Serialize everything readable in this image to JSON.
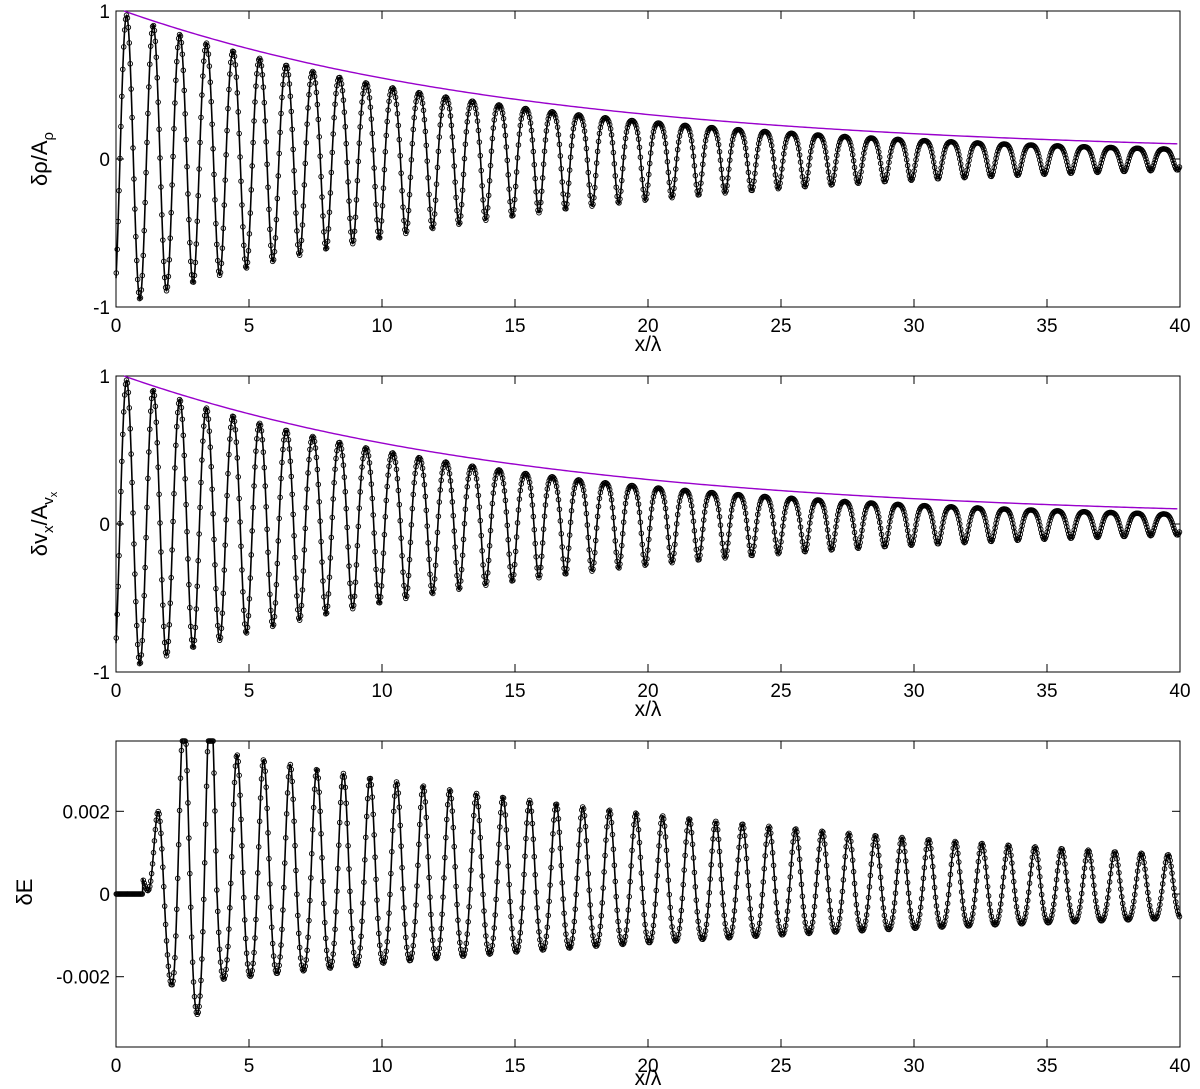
{
  "colors": {
    "data": "#000000",
    "envelope": "#9900cc"
  },
  "panels": [
    {
      "ylabel": {
        "base": "δρ/A",
        "sub": "ρ",
        "subsub": ""
      },
      "xlabel": "x/λ"
    },
    {
      "ylabel": {
        "base": "δv",
        "sub": "x",
        "mid": "/A",
        "sub2": "v",
        "subsub": "x"
      },
      "xlabel": "x/λ"
    },
    {
      "ylabel": {
        "base": "δE",
        "sub": "",
        "subsub": ""
      },
      "xlabel": "x/λ"
    }
  ],
  "chart_data": [
    {
      "type": "line",
      "xlabel": "x/λ",
      "ylabel": "δρ/Aρ",
      "xlim": [
        0,
        40
      ],
      "ylim": [
        -1,
        1
      ],
      "xticks": [
        0,
        5,
        10,
        15,
        20,
        25,
        30,
        35,
        40
      ],
      "xtick_labels": [
        "0",
        "5",
        "10",
        "15",
        "20",
        "25",
        "30",
        "35",
        "40"
      ],
      "yticks": [
        -1,
        0,
        1
      ],
      "ytick_labels": [
        "-1",
        "0",
        "1"
      ],
      "grid": false,
      "legend": "none",
      "series": [
        {
          "kind": "oscillation-markers",
          "description_model": "y = exp(-x/15) * cos(2*pi*(x - 0.4)/1.02) approx",
          "peaks": [
            {
              "x": 0.4,
              "y": 1.0
            },
            {
              "x": 1.4,
              "y": 0.92
            },
            {
              "x": 2.4,
              "y": 0.93
            },
            {
              "x": 3.4,
              "y": 0.84
            },
            {
              "x": 5.4,
              "y": 0.72
            },
            {
              "x": 10.4,
              "y": 0.52
            },
            {
              "x": 15.4,
              "y": 0.37
            },
            {
              "x": 20.4,
              "y": 0.27
            },
            {
              "x": 25.4,
              "y": 0.19
            },
            {
              "x": 30.4,
              "y": 0.14
            },
            {
              "x": 35.4,
              "y": 0.1
            },
            {
              "x": 39.5,
              "y": 0.08
            }
          ],
          "troughs": [
            {
              "x": 0.9,
              "y": -1.0
            },
            {
              "x": 1.9,
              "y": -0.98
            },
            {
              "x": 4.9,
              "y": -0.75
            },
            {
              "x": 9.9,
              "y": -0.62
            },
            {
              "x": 14.9,
              "y": -0.38
            },
            {
              "x": 19.9,
              "y": -0.22
            },
            {
              "x": 24.9,
              "y": -0.15
            },
            {
              "x": 29.9,
              "y": -0.12
            },
            {
              "x": 34.9,
              "y": -0.08
            },
            {
              "x": 39.9,
              "y": -0.05
            }
          ]
        },
        {
          "kind": "envelope",
          "x": [
            0.3,
            5,
            10,
            15,
            20,
            25,
            30,
            35,
            40
          ],
          "y": [
            1.0,
            0.76,
            0.55,
            0.38,
            0.28,
            0.2,
            0.14,
            0.1,
            0.07
          ]
        }
      ],
      "model": {
        "k": 1.0,
        "phase_x": 0.4,
        "decay_len": 15,
        "envelope_decay_len": 15,
        "asym": 0.35,
        "x_start": 0.0
      }
    },
    {
      "type": "line",
      "xlabel": "x/λ",
      "ylabel": "δv_x/A_v_x",
      "xlim": [
        0,
        40
      ],
      "ylim": [
        -1,
        1
      ],
      "xticks": [
        0,
        5,
        10,
        15,
        20,
        25,
        30,
        35,
        40
      ],
      "xtick_labels": [
        "0",
        "5",
        "10",
        "15",
        "20",
        "25",
        "30",
        "35",
        "40"
      ],
      "yticks": [
        -1,
        0,
        1
      ],
      "ytick_labels": [
        "-1",
        "0",
        "1"
      ],
      "grid": false,
      "legend": "none",
      "series": [
        {
          "kind": "oscillation-markers",
          "peaks": [
            {
              "x": 0.4,
              "y": 1.0
            },
            {
              "x": 1.4,
              "y": 0.84
            },
            {
              "x": 2.4,
              "y": 0.98
            },
            {
              "x": 3.4,
              "y": 0.87
            },
            {
              "x": 5.4,
              "y": 0.72
            },
            {
              "x": 10.4,
              "y": 0.52
            },
            {
              "x": 15.4,
              "y": 0.37
            },
            {
              "x": 20.4,
              "y": 0.27
            },
            {
              "x": 25.4,
              "y": 0.19
            },
            {
              "x": 30.4,
              "y": 0.14
            },
            {
              "x": 35.4,
              "y": 0.1
            },
            {
              "x": 39.5,
              "y": 0.08
            }
          ],
          "troughs": [
            {
              "x": 0.9,
              "y": -1.0
            },
            {
              "x": 1.9,
              "y": -1.0
            },
            {
              "x": 4.9,
              "y": -0.78
            },
            {
              "x": 9.9,
              "y": -0.62
            },
            {
              "x": 14.9,
              "y": -0.38
            },
            {
              "x": 19.9,
              "y": -0.22
            },
            {
              "x": 24.9,
              "y": -0.15
            },
            {
              "x": 29.9,
              "y": -0.12
            },
            {
              "x": 34.9,
              "y": -0.08
            },
            {
              "x": 39.9,
              "y": -0.05
            }
          ]
        },
        {
          "kind": "envelope",
          "x": [
            0.3,
            5,
            10,
            15,
            20,
            25,
            30,
            35,
            40
          ],
          "y": [
            1.0,
            0.76,
            0.55,
            0.38,
            0.28,
            0.2,
            0.14,
            0.1,
            0.07
          ]
        }
      ],
      "model": {
        "k": 1.0,
        "phase_x": 0.4,
        "decay_len": 15,
        "envelope_decay_len": 15,
        "asym": 0.35,
        "x_start": 0.0
      }
    },
    {
      "type": "line",
      "xlabel": "x/λ",
      "ylabel": "δE",
      "xlim": [
        0,
        40
      ],
      "ylim": [
        -0.0037,
        0.0037
      ],
      "xticks": [
        0,
        5,
        10,
        15,
        20,
        25,
        30,
        35,
        40
      ],
      "xtick_labels": [
        "0",
        "5",
        "10",
        "15",
        "20",
        "25",
        "30",
        "35",
        "40"
      ],
      "yticks": [
        -0.002,
        0,
        0.002
      ],
      "ytick_labels": [
        "-0.002",
        "0",
        "0.002"
      ],
      "grid": false,
      "legend": "none",
      "series": [
        {
          "kind": "oscillation-markers",
          "flat_until": 1.0,
          "peaks": [
            {
              "x": 1.55,
              "y": 0.0028
            },
            {
              "x": 2.55,
              "y": 0.0034
            },
            {
              "x": 3.55,
              "y": 0.0035
            },
            {
              "x": 4.55,
              "y": 0.0025
            },
            {
              "x": 5.55,
              "y": 0.0021
            },
            {
              "x": 10.55,
              "y": 0.002
            },
            {
              "x": 15.55,
              "y": 0.0015
            },
            {
              "x": 20.55,
              "y": 0.0009
            },
            {
              "x": 25.55,
              "y": 0.0006
            },
            {
              "x": 30.55,
              "y": 0.0004
            },
            {
              "x": 35.55,
              "y": 0.0002
            },
            {
              "x": 39.5,
              "y": 0.0003
            }
          ],
          "troughs": [
            {
              "x": 1.05,
              "y": -0.0018
            },
            {
              "x": 2.05,
              "y": -0.0021
            },
            {
              "x": 3.05,
              "y": -0.0015
            },
            {
              "x": 5.05,
              "y": -0.0017
            },
            {
              "x": 10.05,
              "y": -0.001
            },
            {
              "x": 15.05,
              "y": -0.0006
            },
            {
              "x": 20.05,
              "y": -0.0004
            },
            {
              "x": 25.05,
              "y": -0.0003
            },
            {
              "x": 30.05,
              "y": -0.0002
            },
            {
              "x": 35.05,
              "y": -0.00025
            },
            {
              "x": 39.9,
              "y": 0.0
            }
          ]
        }
      ],
      "model": {
        "k": 1.0,
        "phase_x": 0.55,
        "decay_len": 28,
        "asym": 0.25,
        "x_start": 1.0
      }
    }
  ]
}
